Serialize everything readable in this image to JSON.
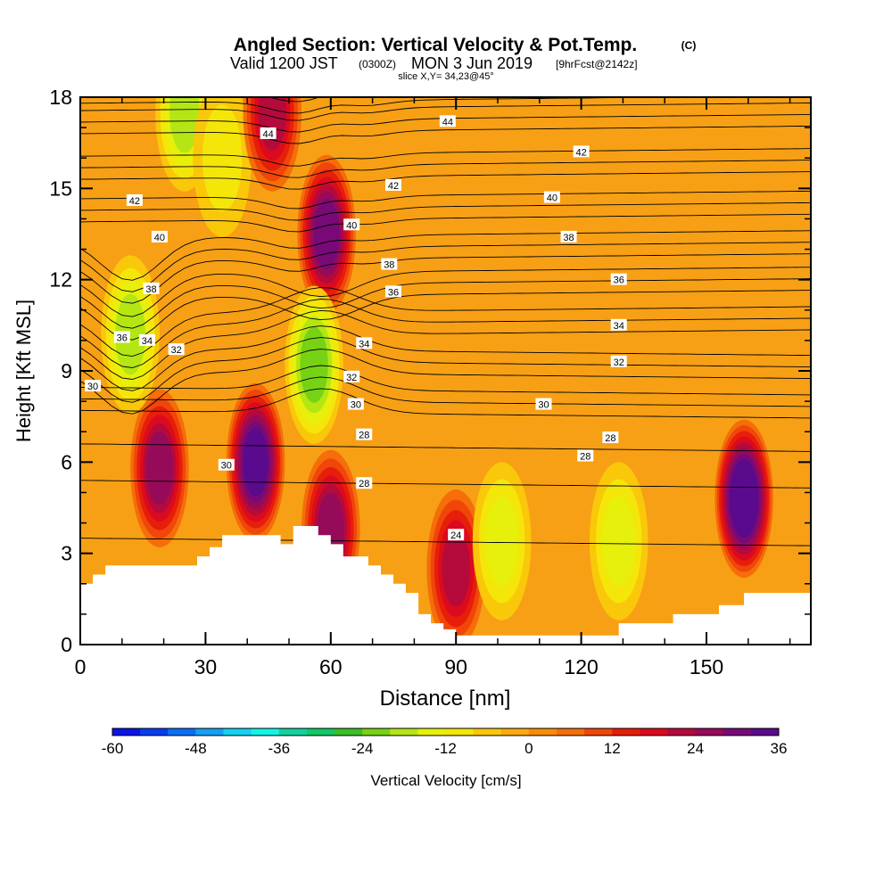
{
  "header": {
    "title": "Angled Section: Vertical Velocity & Pot.Temp.",
    "title_mark": "(C)",
    "valid_prefix": "Valid 1200 JST",
    "valid_utc": "(0300Z)",
    "valid_date": "MON 3 Jun 2019",
    "valid_fcst": "[9hrFcst@2142z]",
    "slice": "slice X,Y= 34,23@45°"
  },
  "chart_data": {
    "type": "heatmap",
    "title": "Angled Section: Vertical Velocity & Pot.Temp.",
    "xlabel": "Distance [nm]",
    "ylabel": "Height [Kft MSL]",
    "xlim": [
      0,
      175
    ],
    "ylim": [
      0,
      18
    ],
    "x_ticks": [
      0,
      30,
      60,
      90,
      120,
      150
    ],
    "y_ticks": [
      0,
      3,
      6,
      9,
      12,
      15,
      18
    ],
    "shaded_field": "Vertical Velocity [cm/s]",
    "contour_field": "Potential temperature",
    "colorbar": {
      "label": "Vertical Velocity [cm/s]",
      "tick_labels": [
        "-60",
        "-48",
        "-36",
        "-24",
        "-12",
        "0",
        "12",
        "24",
        "36"
      ],
      "min": -60,
      "max": 36,
      "step": 4,
      "colors": [
        "#0a14e6",
        "#0a3cf0",
        "#0a6ef5",
        "#14a0f5",
        "#14d2f0",
        "#14f5e6",
        "#14d2a0",
        "#14c864",
        "#3cbe28",
        "#78d214",
        "#b4e614",
        "#e6f00a",
        "#f5e60a",
        "#fac80a",
        "#faaa0a",
        "#f88c0a",
        "#f56e0a",
        "#f0460a",
        "#e61e0a",
        "#dc0a1e",
        "#b40a3c",
        "#960a5a",
        "#780a78",
        "#5a0a8c"
      ]
    },
    "contour_labels": [
      {
        "text": "44",
        "x": 45,
        "y": 16.8
      },
      {
        "text": "44",
        "x": 88,
        "y": 17.2
      },
      {
        "text": "42",
        "x": 13,
        "y": 14.6
      },
      {
        "text": "42",
        "x": 75,
        "y": 15.1
      },
      {
        "text": "42",
        "x": 120,
        "y": 16.2
      },
      {
        "text": "40",
        "x": 19,
        "y": 13.4
      },
      {
        "text": "40",
        "x": 65,
        "y": 13.8
      },
      {
        "text": "40",
        "x": 113,
        "y": 14.7
      },
      {
        "text": "38",
        "x": 17,
        "y": 11.7
      },
      {
        "text": "38",
        "x": 74,
        "y": 12.5
      },
      {
        "text": "38",
        "x": 117,
        "y": 13.4
      },
      {
        "text": "36",
        "x": 10,
        "y": 10.1
      },
      {
        "text": "36",
        "x": 75,
        "y": 11.6
      },
      {
        "text": "36",
        "x": 129,
        "y": 12.0
      },
      {
        "text": "34",
        "x": 16,
        "y": 10.0
      },
      {
        "text": "34",
        "x": 68,
        "y": 9.9
      },
      {
        "text": "34",
        "x": 129,
        "y": 10.5
      },
      {
        "text": "32",
        "x": 23,
        "y": 9.7
      },
      {
        "text": "32",
        "x": 65,
        "y": 8.8
      },
      {
        "text": "32",
        "x": 129,
        "y": 9.3
      },
      {
        "text": "30",
        "x": 3,
        "y": 8.5
      },
      {
        "text": "30",
        "x": 66,
        "y": 7.9
      },
      {
        "text": "30",
        "x": 111,
        "y": 7.9
      },
      {
        "text": "30",
        "x": 35,
        "y": 5.9
      },
      {
        "text": "28",
        "x": 68,
        "y": 6.9
      },
      {
        "text": "28",
        "x": 127,
        "y": 6.8
      },
      {
        "text": "28",
        "x": 121,
        "y": 6.2
      },
      {
        "text": "28",
        "x": 68,
        "y": 5.3
      },
      {
        "text": "24",
        "x": 90,
        "y": 3.6
      }
    ],
    "terrain": [
      [
        0,
        2.0
      ],
      [
        3,
        2.0
      ],
      [
        3,
        2.3
      ],
      [
        6,
        2.3
      ],
      [
        6,
        2.6
      ],
      [
        11,
        2.6
      ],
      [
        28,
        2.6
      ],
      [
        28,
        2.9
      ],
      [
        31,
        2.9
      ],
      [
        31,
        3.2
      ],
      [
        34,
        3.2
      ],
      [
        34,
        3.6
      ],
      [
        48,
        3.6
      ],
      [
        48,
        3.3
      ],
      [
        51,
        3.3
      ],
      [
        51,
        3.9
      ],
      [
        57,
        3.9
      ],
      [
        57,
        3.6
      ],
      [
        60,
        3.6
      ],
      [
        60,
        3.3
      ],
      [
        63,
        3.3
      ],
      [
        63,
        2.9
      ],
      [
        69,
        2.9
      ],
      [
        69,
        2.6
      ],
      [
        72,
        2.6
      ],
      [
        72,
        2.3
      ],
      [
        75,
        2.3
      ],
      [
        75,
        2.0
      ],
      [
        78,
        2.0
      ],
      [
        78,
        1.7
      ],
      [
        81,
        1.7
      ],
      [
        81,
        1.0
      ],
      [
        84,
        1.0
      ],
      [
        84,
        0.7
      ],
      [
        87,
        0.7
      ],
      [
        87,
        0.5
      ],
      [
        90,
        0.5
      ],
      [
        90,
        0.3
      ],
      [
        97,
        0.3
      ],
      [
        129,
        0.3
      ],
      [
        129,
        0.7
      ],
      [
        142,
        0.7
      ],
      [
        142,
        1.0
      ],
      [
        153,
        1.0
      ],
      [
        153,
        1.3
      ],
      [
        159,
        1.3
      ],
      [
        159,
        1.7
      ],
      [
        175,
        1.7
      ]
    ],
    "wvel_centers": [
      {
        "x": 19,
        "y": 5.8,
        "value": 26
      },
      {
        "x": 42,
        "y": 6.0,
        "value": 34
      },
      {
        "x": 59,
        "y": 13.5,
        "value": 28
      },
      {
        "x": 60,
        "y": 3.8,
        "value": 24
      },
      {
        "x": 90,
        "y": 2.5,
        "value": 20
      },
      {
        "x": 159,
        "y": 4.8,
        "value": 36
      },
      {
        "x": 56,
        "y": 9.2,
        "value": -22
      },
      {
        "x": 101,
        "y": 3.4,
        "value": -12
      },
      {
        "x": 129,
        "y": 3.4,
        "value": -14
      },
      {
        "x": 25,
        "y": 17.5,
        "value": -18
      },
      {
        "x": 12,
        "y": 10.2,
        "value": -18
      },
      {
        "x": 34,
        "y": 16.0,
        "value": -8
      },
      {
        "x": 46,
        "y": 17.5,
        "value": 22
      }
    ]
  }
}
